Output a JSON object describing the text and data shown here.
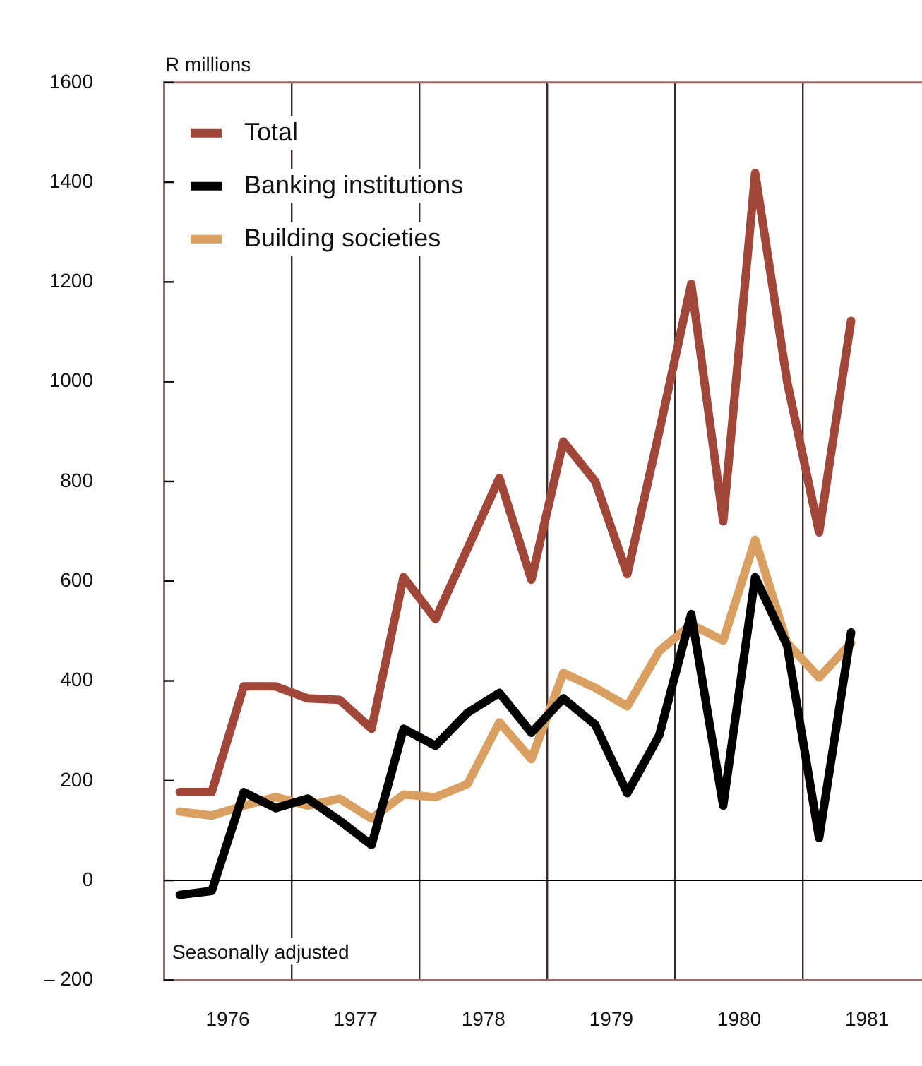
{
  "chart_data": {
    "type": "line",
    "ylabel": "R millions",
    "x": [
      1976.125,
      1976.375,
      1976.625,
      1976.875,
      1977.125,
      1977.375,
      1977.625,
      1977.875,
      1978.125,
      1978.375,
      1978.625,
      1978.875,
      1979.125,
      1979.375,
      1979.625,
      1979.875,
      1980.125,
      1980.375,
      1980.625,
      1980.875,
      1981.125,
      1981.375
    ],
    "series": [
      {
        "name": "Total",
        "color": "#a0473a",
        "values": [
          177,
          177,
          389,
          389,
          365,
          362,
          304,
          608,
          524,
          665,
          807,
          603,
          880,
          800,
          614,
          900,
          1196,
          720,
          1418,
          1000,
          698,
          1122
        ]
      },
      {
        "name": "Banking institutions",
        "color": "#000000",
        "values": [
          -29,
          -21,
          177,
          145,
          164,
          120,
          71,
          304,
          270,
          336,
          376,
          296,
          365,
          312,
          175,
          291,
          534,
          150,
          608,
          471,
          85,
          497
        ]
      },
      {
        "name": "Building societies",
        "color": "#d9a062",
        "values": [
          138,
          130,
          150,
          167,
          150,
          164,
          124,
          172,
          167,
          193,
          317,
          243,
          416,
          386,
          349,
          460,
          513,
          481,
          683,
          476,
          407,
          476
        ]
      }
    ],
    "xlim": [
      1976,
      1981.93
    ],
    "xticks": [
      {
        "value": 1976,
        "label": null
      },
      {
        "value": 1976.5,
        "label": "1976"
      },
      {
        "value": 1977,
        "label": null
      },
      {
        "value": 1977.5,
        "label": "1977"
      },
      {
        "value": 1978,
        "label": null
      },
      {
        "value": 1978.5,
        "label": "1978"
      },
      {
        "value": 1979,
        "label": null
      },
      {
        "value": 1979.5,
        "label": "1979"
      },
      {
        "value": 1980,
        "label": null
      },
      {
        "value": 1980.5,
        "label": "1980"
      },
      {
        "value": 1981,
        "label": null
      },
      {
        "value": 1981.5,
        "label": "1981"
      }
    ],
    "ylim": [
      -200,
      1600
    ],
    "yticks": [
      {
        "value": -200,
        "label": "– 200"
      },
      0,
      200,
      400,
      600,
      800,
      1000,
      1200,
      1400,
      1600
    ],
    "ref_lines": [
      {
        "axis": "y",
        "value": 0,
        "color": "#000000"
      }
    ],
    "annotations": [
      "Seasonally adjusted"
    ],
    "grid": "x",
    "legend": "top left",
    "marker": "none",
    "line_style": "solid"
  }
}
